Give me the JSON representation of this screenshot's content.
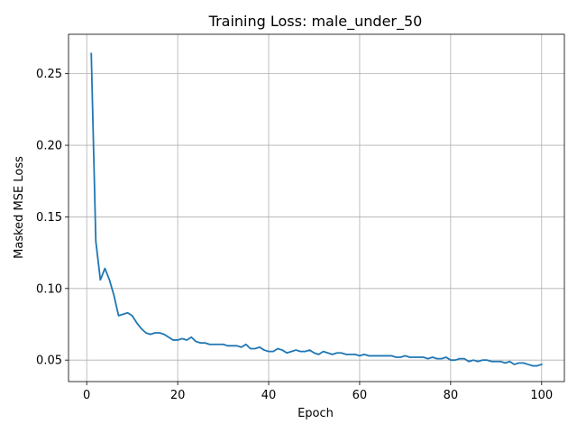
{
  "chart_data": {
    "type": "line",
    "title": "Training Loss: male_under_50",
    "xlabel": "Epoch",
    "ylabel": "Masked MSE Loss",
    "xlim": [
      -4,
      105
    ],
    "ylim": [
      0.035,
      0.2775
    ],
    "x_ticks": [
      0,
      20,
      40,
      60,
      80,
      100
    ],
    "y_ticks": [
      0.05,
      0.1,
      0.15,
      0.2,
      0.25
    ],
    "y_tick_labels": [
      "0.05",
      "0.10",
      "0.15",
      "0.20",
      "0.25"
    ],
    "grid": true,
    "line_color": "#1f77b4",
    "series": [
      {
        "x": [
          1,
          2,
          3,
          4,
          5,
          6,
          7,
          8,
          9,
          10,
          11,
          12,
          13,
          14,
          15,
          16,
          17,
          18,
          19,
          20,
          21,
          22,
          23,
          24,
          25,
          26,
          27,
          28,
          29,
          30,
          31,
          32,
          33,
          34,
          35,
          36,
          37,
          38,
          39,
          40,
          41,
          42,
          43,
          44,
          45,
          46,
          47,
          48,
          49,
          50,
          51,
          52,
          53,
          54,
          55,
          56,
          57,
          58,
          59,
          60,
          61,
          62,
          63,
          64,
          65,
          66,
          67,
          68,
          69,
          70,
          71,
          72,
          73,
          74,
          75,
          76,
          77,
          78,
          79,
          80,
          81,
          82,
          83,
          84,
          85,
          86,
          87,
          88,
          89,
          90,
          91,
          92,
          93,
          94,
          95,
          96,
          97,
          98,
          99,
          100
        ],
        "values": [
          0.264,
          0.133,
          0.106,
          0.114,
          0.106,
          0.095,
          0.081,
          0.082,
          0.083,
          0.081,
          0.076,
          0.072,
          0.069,
          0.068,
          0.069,
          0.069,
          0.068,
          0.066,
          0.064,
          0.064,
          0.065,
          0.064,
          0.066,
          0.063,
          0.062,
          0.062,
          0.061,
          0.061,
          0.061,
          0.061,
          0.06,
          0.06,
          0.06,
          0.059,
          0.061,
          0.058,
          0.058,
          0.059,
          0.057,
          0.056,
          0.056,
          0.058,
          0.057,
          0.055,
          0.056,
          0.057,
          0.056,
          0.056,
          0.057,
          0.055,
          0.054,
          0.056,
          0.055,
          0.054,
          0.055,
          0.055,
          0.054,
          0.054,
          0.054,
          0.053,
          0.054,
          0.053,
          0.053,
          0.053,
          0.053,
          0.053,
          0.053,
          0.052,
          0.052,
          0.053,
          0.052,
          0.052,
          0.052,
          0.052,
          0.051,
          0.052,
          0.051,
          0.051,
          0.052,
          0.05,
          0.05,
          0.051,
          0.051,
          0.049,
          0.05,
          0.049,
          0.05,
          0.05,
          0.049,
          0.049,
          0.049,
          0.048,
          0.049,
          0.047,
          0.048,
          0.048,
          0.047,
          0.046,
          0.046,
          0.047
        ]
      }
    ]
  }
}
